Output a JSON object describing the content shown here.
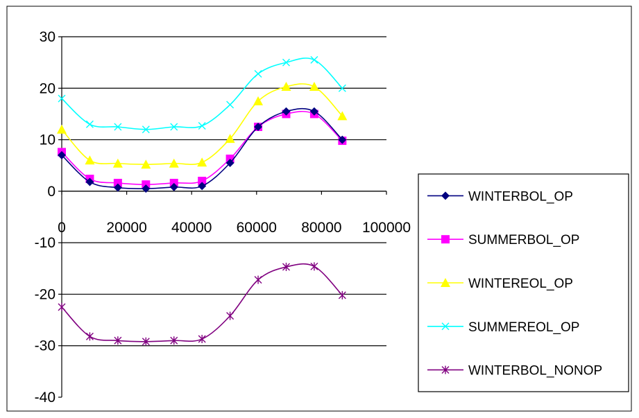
{
  "chart_data": {
    "type": "line",
    "title": "",
    "xlabel": "",
    "ylabel": "",
    "xlim": [
      0,
      100000
    ],
    "ylim": [
      -40,
      30
    ],
    "x_ticks": [
      0,
      20000,
      40000,
      60000,
      80000,
      100000
    ],
    "y_ticks": [
      30,
      20,
      10,
      0,
      -10,
      -20,
      -30,
      -40
    ],
    "x_tick_labels": [
      "0",
      "20000",
      "40000",
      "60000",
      "80000",
      "100000"
    ],
    "y_tick_labels": [
      "30",
      "20",
      "10",
      "0",
      "-10",
      "-20",
      "-30",
      "-40"
    ],
    "grid": "horizontal",
    "legend_position": "right",
    "x": [
      0,
      8640,
      17280,
      25920,
      34560,
      43200,
      51840,
      60480,
      69120,
      77760,
      86400
    ],
    "series": [
      {
        "name": "WINTERBOL_OP",
        "color": "#000080",
        "marker": "diamond",
        "values": [
          7.0,
          1.8,
          0.7,
          0.5,
          0.8,
          1.0,
          5.5,
          12.5,
          15.5,
          15.5,
          10.0
        ]
      },
      {
        "name": "SUMMERBOL_OP",
        "color": "#ff00ff",
        "marker": "square",
        "values": [
          7.6,
          2.4,
          1.6,
          1.3,
          1.6,
          2.0,
          6.3,
          12.5,
          15.0,
          15.0,
          9.8
        ]
      },
      {
        "name": "WINTEREOL_OP",
        "color": "#ffff00",
        "marker": "triangle",
        "values": [
          12.0,
          6.0,
          5.4,
          5.2,
          5.4,
          5.6,
          10.2,
          17.5,
          20.3,
          20.3,
          14.6
        ]
      },
      {
        "name": "SUMMEREOL_OP",
        "color": "#00ffff",
        "marker": "x",
        "values": [
          18.0,
          13.0,
          12.5,
          12.0,
          12.5,
          12.7,
          16.8,
          22.8,
          25.0,
          25.5,
          20.0
        ]
      },
      {
        "name": "WINTERBOL_NONOP",
        "color": "#800080",
        "marker": "star",
        "values": [
          -22.5,
          -28.2,
          -29.0,
          -29.2,
          -29.0,
          -28.7,
          -24.2,
          -17.2,
          -14.7,
          -14.6,
          -20.2
        ]
      }
    ]
  }
}
